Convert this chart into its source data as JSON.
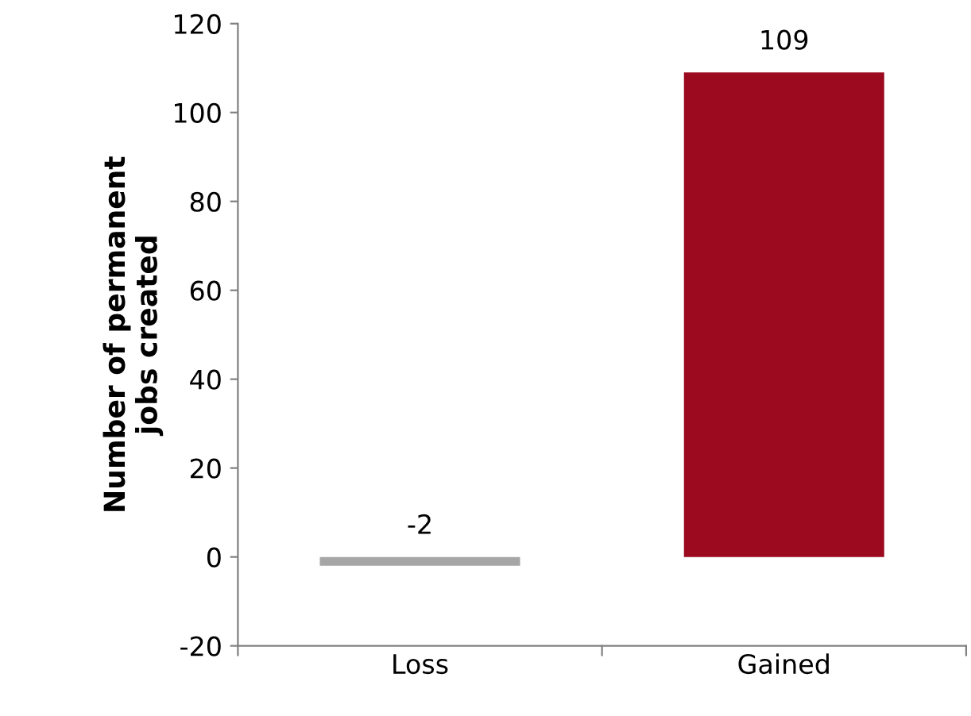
{
  "chart_data": {
    "type": "bar",
    "ylabel": "Number of permanent\njobs created",
    "categories": [
      "Loss",
      "Gained"
    ],
    "values": [
      -2,
      109
    ],
    "colors": [
      "#a6a6a6",
      "#9b0a1f"
    ],
    "ylim": [
      -20,
      120
    ],
    "yticks": [
      -20,
      0,
      20,
      40,
      60,
      80,
      100,
      120
    ],
    "data_labels": true,
    "grid": false
  }
}
